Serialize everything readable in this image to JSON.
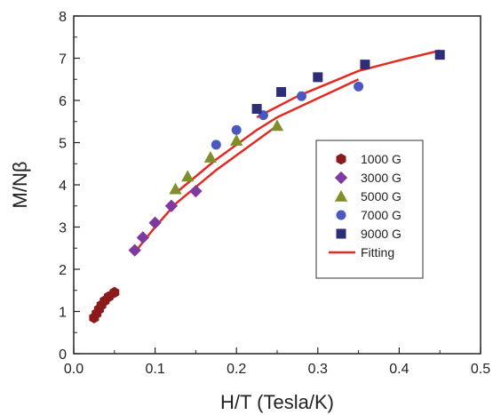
{
  "chart_data": {
    "type": "scatter",
    "xlabel": "H/T (Tesla/K)",
    "ylabel": "M/Nβ",
    "xlim": [
      0.0,
      0.5
    ],
    "ylim": [
      0,
      8
    ],
    "xticks": [
      "0.0",
      "0.1",
      "0.2",
      "0.3",
      "0.4",
      "0.5"
    ],
    "yticks": [
      "0",
      "1",
      "2",
      "3",
      "4",
      "5",
      "6",
      "7",
      "8"
    ],
    "grid": false,
    "legend_position": "right-middle",
    "series": [
      {
        "name": "1000 G",
        "marker": "hexagon",
        "color": "#8b1a1a",
        "points": [
          [
            0.025,
            0.85
          ],
          [
            0.028,
            0.95
          ],
          [
            0.031,
            1.05
          ],
          [
            0.034,
            1.15
          ],
          [
            0.038,
            1.25
          ],
          [
            0.043,
            1.35
          ],
          [
            0.05,
            1.45
          ]
        ]
      },
      {
        "name": "3000 G",
        "marker": "diamond",
        "color": "#7d3aa0",
        "points": [
          [
            0.075,
            2.45
          ],
          [
            0.085,
            2.75
          ],
          [
            0.1,
            3.1
          ],
          [
            0.12,
            3.5
          ],
          [
            0.15,
            3.85
          ]
        ]
      },
      {
        "name": "5000 G",
        "marker": "triangle",
        "color": "#7f8f2a",
        "points": [
          [
            0.125,
            3.9
          ],
          [
            0.14,
            4.2
          ],
          [
            0.168,
            4.65
          ],
          [
            0.2,
            5.05
          ],
          [
            0.25,
            5.4
          ]
        ]
      },
      {
        "name": "7000 G",
        "marker": "circle",
        "color": "#4a58c0",
        "points": [
          [
            0.175,
            4.95
          ],
          [
            0.2,
            5.3
          ],
          [
            0.233,
            5.65
          ],
          [
            0.28,
            6.1
          ],
          [
            0.35,
            6.33
          ]
        ]
      },
      {
        "name": "9000 G",
        "marker": "square",
        "color": "#2e2e78",
        "points": [
          [
            0.225,
            5.8
          ],
          [
            0.255,
            6.2
          ],
          [
            0.3,
            6.55
          ],
          [
            0.358,
            6.85
          ],
          [
            0.45,
            7.08
          ]
        ]
      }
    ],
    "fit_series": {
      "name": "Fitting",
      "color": "#e32b24",
      "lines": [
        [
          [
            0.023,
            0.8
          ],
          [
            0.035,
            1.1
          ],
          [
            0.05,
            1.45
          ]
        ],
        [
          [
            0.075,
            2.4
          ],
          [
            0.1,
            3.0
          ],
          [
            0.125,
            3.55
          ],
          [
            0.15,
            3.95
          ],
          [
            0.175,
            4.35
          ],
          [
            0.2,
            4.7
          ],
          [
            0.225,
            5.05
          ],
          [
            0.25,
            5.4
          ]
        ],
        [
          [
            0.125,
            3.8
          ],
          [
            0.15,
            4.2
          ],
          [
            0.175,
            4.6
          ],
          [
            0.2,
            4.95
          ],
          [
            0.225,
            5.3
          ],
          [
            0.25,
            5.6
          ],
          [
            0.3,
            6.05
          ],
          [
            0.35,
            6.5
          ]
        ],
        [
          [
            0.225,
            5.6
          ],
          [
            0.25,
            5.85
          ],
          [
            0.275,
            6.1
          ],
          [
            0.3,
            6.3
          ],
          [
            0.325,
            6.5
          ],
          [
            0.35,
            6.7
          ],
          [
            0.4,
            6.95
          ],
          [
            0.45,
            7.18
          ]
        ]
      ]
    }
  }
}
